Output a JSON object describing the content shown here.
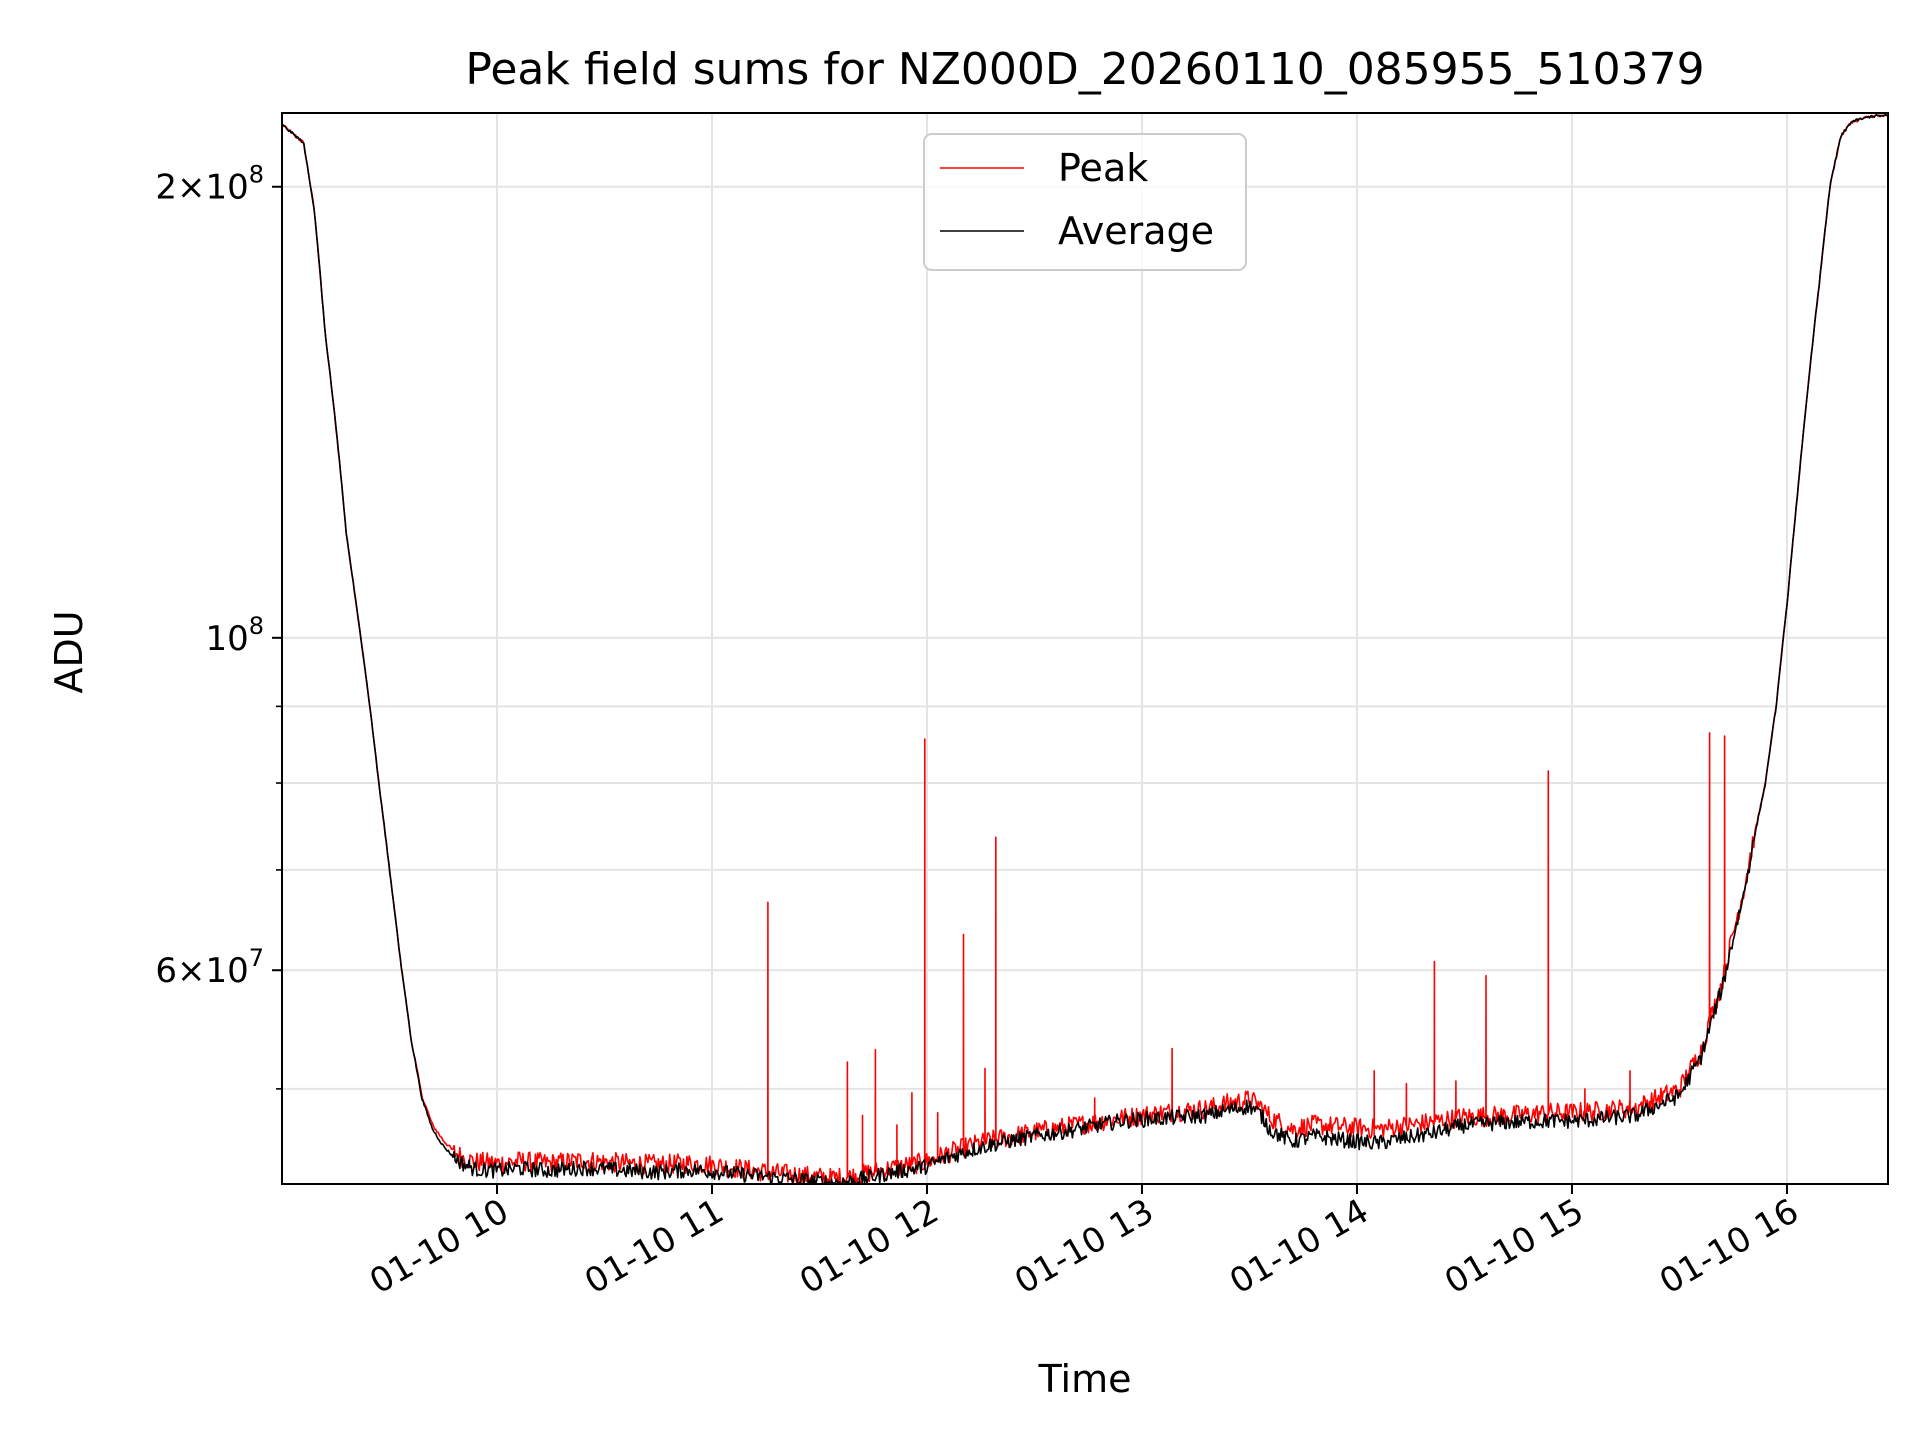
{
  "chart_data": {
    "type": "line",
    "title": "Peak field sums for NZ000D_20260110_085955_510379",
    "xlabel": "Time",
    "ylabel": "ADU",
    "yscale": "log",
    "xlim": [
      9.0,
      16.47
    ],
    "ylim": [
      43200000,
      224000000
    ],
    "grid": true,
    "legend_position": "top-center",
    "x_ticks": [
      {
        "value": 10,
        "label": "01-10 10"
      },
      {
        "value": 11,
        "label": "01-10 11"
      },
      {
        "value": 12,
        "label": "01-10 12"
      },
      {
        "value": 13,
        "label": "01-10 13"
      },
      {
        "value": 14,
        "label": "01-10 14"
      },
      {
        "value": 15,
        "label": "01-10 15"
      },
      {
        "value": 16,
        "label": "01-10 16"
      }
    ],
    "y_ticks": [
      {
        "value": 60000000,
        "mantissa": "6",
        "exponent": "7"
      },
      {
        "value": 100000000,
        "mantissa": "",
        "exponent": "8"
      },
      {
        "value": 200000000,
        "mantissa": "2",
        "exponent": "8"
      }
    ],
    "y_minor_ticks": [
      50000000,
      70000000,
      80000000,
      90000000
    ],
    "series": [
      {
        "name": "Peak",
        "color": "#ff0000",
        "x": [
          9.0,
          9.1,
          9.15,
          9.2,
          9.3,
          9.35,
          9.4,
          9.45,
          9.5,
          9.55,
          9.6,
          9.65,
          9.7,
          9.75,
          9.8,
          9.85,
          9.9,
          10.0,
          10.1,
          10.25,
          10.4,
          10.5,
          10.6,
          10.75,
          10.9,
          11.0,
          11.1,
          11.25,
          11.4,
          11.55,
          11.65,
          11.75,
          11.85,
          12.0,
          12.1,
          12.2,
          12.3,
          12.5,
          12.7,
          12.9,
          13.0,
          13.1,
          13.3,
          13.4,
          13.5,
          13.55,
          13.6,
          13.7,
          13.8,
          13.9,
          14.0,
          14.1,
          14.2,
          14.35,
          14.5,
          14.7,
          14.9,
          15.0,
          15.1,
          15.3,
          15.5,
          15.6,
          15.7,
          15.8,
          15.9,
          15.95,
          16.0,
          16.05,
          16.1,
          16.15,
          16.2,
          16.25,
          16.3,
          16.4,
          16.47
        ],
        "y": [
          220000000,
          214000000,
          193000000,
          160000000,
          117000000,
          104000000,
          92000000,
          80000000,
          70000000,
          61000000,
          54000000,
          49500000,
          47300000,
          46200000,
          45400000,
          44900000,
          44700000,
          44600000,
          44750000,
          44600000,
          44800000,
          44700000,
          44600000,
          44500000,
          44600000,
          44500000,
          44300000,
          44000000,
          43800000,
          43600000,
          43700000,
          44000000,
          44300000,
          44700000,
          45300000,
          45800000,
          46200000,
          46800000,
          47300000,
          47800000,
          48000000,
          48200000,
          48500000,
          48900000,
          49200000,
          48700000,
          47800000,
          47000000,
          47300000,
          47200000,
          47100000,
          47000000,
          47200000,
          47500000,
          47900000,
          48000000,
          48200000,
          48200000,
          48300000,
          48600000,
          50000000,
          53000000,
          59000000,
          68000000,
          80000000,
          90000000,
          105000000,
          125000000,
          148000000,
          172000000,
          200000000,
          216000000,
          221000000,
          223000000,
          223000000
        ],
        "spikes": [
          {
            "x": 11.26,
            "y": 66600000
          },
          {
            "x": 11.63,
            "y": 52100000
          },
          {
            "x": 11.7,
            "y": 48000000
          },
          {
            "x": 11.76,
            "y": 53100000
          },
          {
            "x": 11.86,
            "y": 47300000
          },
          {
            "x": 11.93,
            "y": 49700000
          },
          {
            "x": 11.99,
            "y": 85600000
          },
          {
            "x": 12.05,
            "y": 48200000
          },
          {
            "x": 12.17,
            "y": 63400000
          },
          {
            "x": 12.27,
            "y": 51600000
          },
          {
            "x": 12.32,
            "y": 73600000
          },
          {
            "x": 12.78,
            "y": 49300000
          },
          {
            "x": 13.14,
            "y": 53200000
          },
          {
            "x": 14.08,
            "y": 51400000
          },
          {
            "x": 14.23,
            "y": 50400000
          },
          {
            "x": 14.36,
            "y": 60800000
          },
          {
            "x": 14.46,
            "y": 50600000
          },
          {
            "x": 14.6,
            "y": 59500000
          },
          {
            "x": 14.89,
            "y": 81500000
          },
          {
            "x": 15.06,
            "y": 50000000
          },
          {
            "x": 15.27,
            "y": 51400000
          },
          {
            "x": 15.64,
            "y": 86400000
          },
          {
            "x": 15.71,
            "y": 86000000
          }
        ]
      },
      {
        "name": "Average",
        "color": "#000000",
        "x": [
          9.0,
          9.1,
          9.15,
          9.2,
          9.3,
          9.35,
          9.4,
          9.45,
          9.5,
          9.55,
          9.6,
          9.65,
          9.7,
          9.75,
          9.8,
          9.85,
          9.9,
          10.0,
          10.1,
          10.25,
          10.4,
          10.5,
          10.6,
          10.75,
          10.9,
          11.0,
          11.1,
          11.25,
          11.4,
          11.55,
          11.65,
          11.75,
          11.85,
          12.0,
          12.1,
          12.2,
          12.3,
          12.5,
          12.7,
          12.9,
          13.0,
          13.1,
          13.3,
          13.4,
          13.5,
          13.55,
          13.6,
          13.7,
          13.8,
          13.9,
          14.0,
          14.1,
          14.2,
          14.35,
          14.5,
          14.7,
          14.9,
          15.0,
          15.1,
          15.3,
          15.5,
          15.6,
          15.7,
          15.8,
          15.9,
          15.95,
          16.0,
          16.05,
          16.1,
          16.15,
          16.2,
          16.25,
          16.3,
          16.4,
          16.47
        ],
        "y": [
          220000000,
          214000000,
          193000000,
          160000000,
          117000000,
          104000000,
          92000000,
          80000000,
          70000000,
          61000000,
          54000000,
          49300000,
          47000000,
          45800000,
          45000000,
          44500000,
          44200000,
          44100000,
          44250000,
          44100000,
          44300000,
          44200000,
          44100000,
          44000000,
          44150000,
          44050000,
          43900000,
          43700000,
          43500000,
          43300000,
          43400000,
          43700000,
          44000000,
          44400000,
          45000000,
          45500000,
          45900000,
          46500000,
          47000000,
          47600000,
          47700000,
          47800000,
          48000000,
          48400000,
          48700000,
          48100000,
          46900000,
          46100000,
          46500000,
          46300000,
          46100000,
          46000000,
          46300000,
          46700000,
          47300000,
          47500000,
          47600000,
          47600000,
          47700000,
          48000000,
          49500000,
          52500000,
          58500000,
          67500000,
          80000000,
          90000000,
          105000000,
          125000000,
          148000000,
          172000000,
          200000000,
          216000000,
          221000000,
          223000000,
          223000000
        ]
      }
    ]
  }
}
